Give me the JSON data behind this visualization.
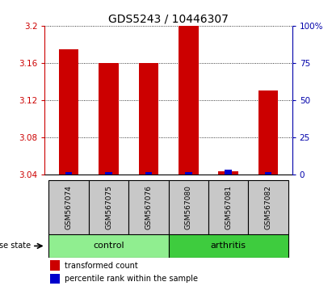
{
  "title": "GDS5243 / 10446307",
  "samples": [
    "GSM567074",
    "GSM567075",
    "GSM567076",
    "GSM567080",
    "GSM567081",
    "GSM567082"
  ],
  "red_values": [
    3.175,
    3.16,
    3.16,
    3.2,
    3.043,
    3.13
  ],
  "blue_values": [
    1.5,
    1.5,
    1.5,
    1.5,
    3.0,
    1.5
  ],
  "ylim_left": [
    3.04,
    3.2
  ],
  "ylim_right": [
    0,
    100
  ],
  "yticks_left": [
    3.04,
    3.08,
    3.12,
    3.16,
    3.2
  ],
  "ytick_labels_left": [
    "3.04",
    "3.08",
    "3.12",
    "3.16",
    "3.2"
  ],
  "ytick_labels_right": [
    "0",
    "25",
    "50",
    "75",
    "100%"
  ],
  "control_color": "#90EE90",
  "arthritis_color": "#3ECC3E",
  "sample_box_color": "#C8C8C8",
  "red_color": "#CC0000",
  "blue_color": "#0000CC",
  "left_axis_color": "#CC0000",
  "right_axis_color": "#0000AA",
  "title_fontsize": 10,
  "tick_fontsize": 7.5,
  "legend_items": [
    {
      "label": "transformed count",
      "color": "#CC0000"
    },
    {
      "label": "percentile rank within the sample",
      "color": "#0000CC"
    }
  ]
}
